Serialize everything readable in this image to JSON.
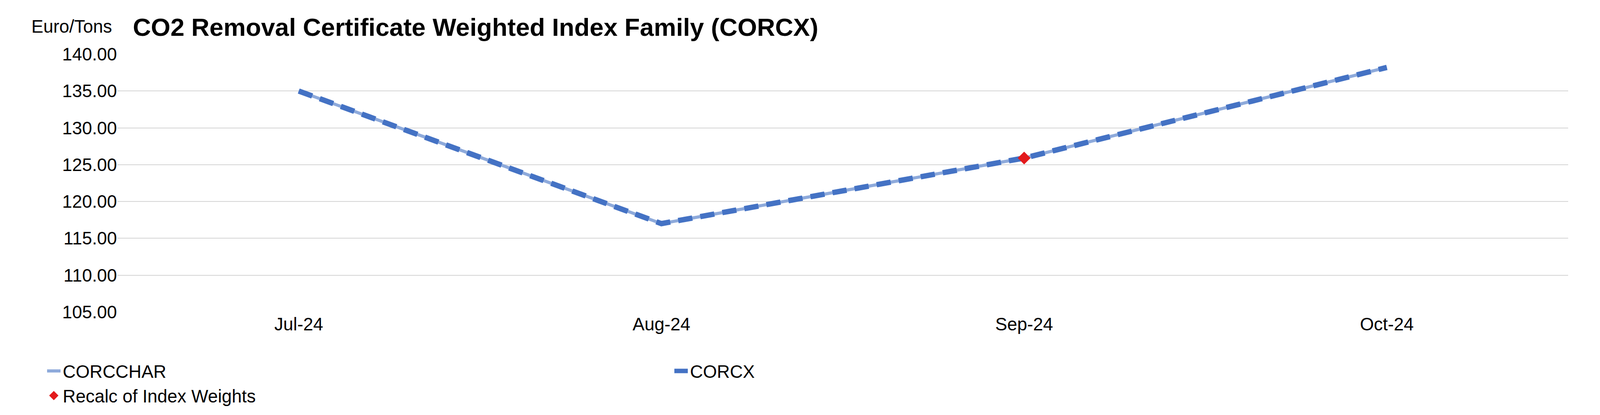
{
  "chart_data": {
    "type": "line",
    "title": "CO2 Removal Certificate Weighted Index Family (CORCX)",
    "y_label": "Euro/Tons",
    "categories": [
      "Jul-24",
      "Aug-24",
      "Sep-24",
      "Oct-24"
    ],
    "series": [
      {
        "name": "CORCCHAR",
        "color": "#8eaadb",
        "line_style": "solid",
        "values": [
          135.0,
          117.0,
          125.9,
          138.2
        ]
      },
      {
        "name": "CORCX",
        "color": "#4472c4",
        "line_style": "dashed",
        "values": [
          135.0,
          117.0,
          125.9,
          138.2
        ]
      },
      {
        "name": "Recalc of Index Weights",
        "type": "scatter",
        "marker": "diamond",
        "color": "#e31a1c",
        "values": [
          null,
          null,
          125.9,
          null
        ]
      }
    ],
    "ylim": [
      105,
      140
    ],
    "yticks": [
      {
        "value": 105,
        "label": "105.00"
      },
      {
        "value": 110,
        "label": "110.00"
      },
      {
        "value": 115,
        "label": "115.00"
      },
      {
        "value": 120,
        "label": "120.00"
      },
      {
        "value": 125,
        "label": "125.00"
      },
      {
        "value": 130,
        "label": "130.00"
      },
      {
        "value": 135,
        "label": "135.00"
      },
      {
        "value": 140,
        "label": "140.00"
      }
    ],
    "grid": true,
    "legend": "bottom left"
  }
}
